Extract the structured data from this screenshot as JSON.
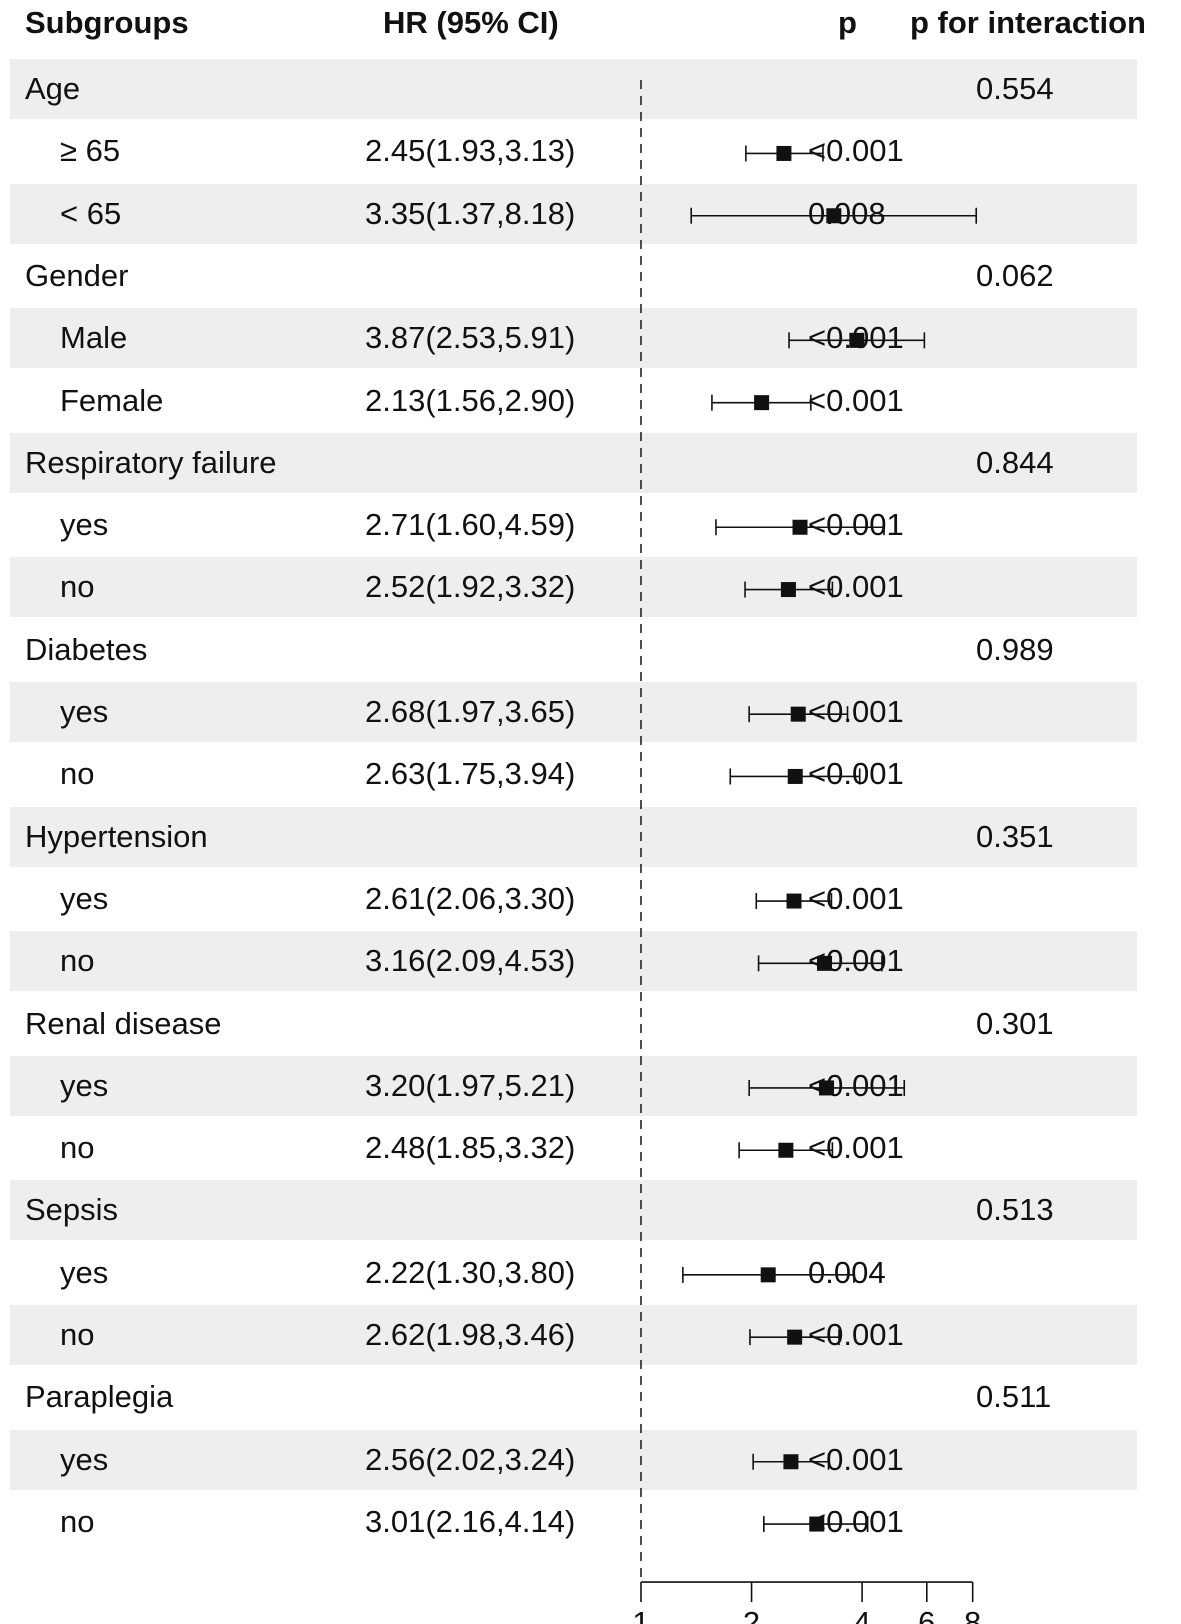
{
  "header": {
    "subgroups": "Subgroups",
    "hr": "HR (95% CI)",
    "p": "p",
    "p_interaction": "p for interaction"
  },
  "chart_data": {
    "type": "forest",
    "reference_line": 1,
    "x_scale": "log",
    "x_ticks": [
      1,
      2,
      4,
      6,
      8
    ],
    "x_tick_labels": [
      "1",
      "2",
      "4",
      "6",
      "8"
    ],
    "rows": [
      {
        "kind": "group",
        "label": "Age",
        "p_interaction": "0.554"
      },
      {
        "kind": "sub",
        "label": "≥ 65",
        "hr_text": "2.45(1.93,3.13)",
        "hr": 2.45,
        "lo": 1.93,
        "hi": 3.13,
        "p": "<0.001"
      },
      {
        "kind": "sub",
        "label": "< 65",
        "hr_text": "3.35(1.37,8.18)",
        "hr": 3.35,
        "lo": 1.37,
        "hi": 8.18,
        "p": "0.008"
      },
      {
        "kind": "group",
        "label": "Gender",
        "p_interaction": "0.062"
      },
      {
        "kind": "sub",
        "label": "Male",
        "hr_text": "3.87(2.53,5.91)",
        "hr": 3.87,
        "lo": 2.53,
        "hi": 5.91,
        "p": "<0.001"
      },
      {
        "kind": "sub",
        "label": "Female",
        "hr_text": "2.13(1.56,2.90)",
        "hr": 2.13,
        "lo": 1.56,
        "hi": 2.9,
        "p": "<0.001"
      },
      {
        "kind": "group",
        "label": "Respiratory  failure",
        "p_interaction": "0.844"
      },
      {
        "kind": "sub",
        "label": "yes",
        "hr_text": "2.71(1.60,4.59)",
        "hr": 2.71,
        "lo": 1.6,
        "hi": 4.59,
        "p": "<0.001"
      },
      {
        "kind": "sub",
        "label": "no",
        "hr_text": "2.52(1.92,3.32)",
        "hr": 2.52,
        "lo": 1.92,
        "hi": 3.32,
        "p": "<0.001"
      },
      {
        "kind": "group",
        "label": "Diabetes",
        "p_interaction": "0.989"
      },
      {
        "kind": "sub",
        "label": "yes",
        "hr_text": "2.68(1.97,3.65)",
        "hr": 2.68,
        "lo": 1.97,
        "hi": 3.65,
        "p": "<0.001"
      },
      {
        "kind": "sub",
        "label": "no",
        "hr_text": "2.63(1.75,3.94)",
        "hr": 2.63,
        "lo": 1.75,
        "hi": 3.94,
        "p": "<0.001"
      },
      {
        "kind": "group",
        "label": "Hypertension",
        "p_interaction": "0.351"
      },
      {
        "kind": "sub",
        "label": "yes",
        "hr_text": "2.61(2.06,3.30)",
        "hr": 2.61,
        "lo": 2.06,
        "hi": 3.3,
        "p": "<0.001"
      },
      {
        "kind": "sub",
        "label": "no",
        "hr_text": "3.16(2.09,4.53)",
        "hr": 3.16,
        "lo": 2.09,
        "hi": 4.53,
        "p": "<0.001"
      },
      {
        "kind": "group",
        "label": "Renal  disease",
        "p_interaction": "0.301"
      },
      {
        "kind": "sub",
        "label": "yes",
        "hr_text": "3.20(1.97,5.21)",
        "hr": 3.2,
        "lo": 1.97,
        "hi": 5.21,
        "p": "<0.001"
      },
      {
        "kind": "sub",
        "label": "no",
        "hr_text": "2.48(1.85,3.32)",
        "hr": 2.48,
        "lo": 1.85,
        "hi": 3.32,
        "p": "<0.001"
      },
      {
        "kind": "group",
        "label": "Sepsis",
        "p_interaction": "0.513"
      },
      {
        "kind": "sub",
        "label": "yes",
        "hr_text": "2.22(1.30,3.80)",
        "hr": 2.22,
        "lo": 1.3,
        "hi": 3.8,
        "p": "0.004"
      },
      {
        "kind": "sub",
        "label": "no",
        "hr_text": "2.62(1.98,3.46)",
        "hr": 2.62,
        "lo": 1.98,
        "hi": 3.46,
        "p": "<0.001"
      },
      {
        "kind": "group",
        "label": "Paraplegia",
        "p_interaction": "0.511"
      },
      {
        "kind": "sub",
        "label": "yes",
        "hr_text": "2.56(2.02,3.24)",
        "hr": 2.56,
        "lo": 2.02,
        "hi": 3.24,
        "p": "<0.001"
      },
      {
        "kind": "sub",
        "label": "no",
        "hr_text": "3.01(2.16,4.14)",
        "hr": 3.01,
        "lo": 2.16,
        "hi": 4.14,
        "p": "<0.001"
      }
    ]
  }
}
